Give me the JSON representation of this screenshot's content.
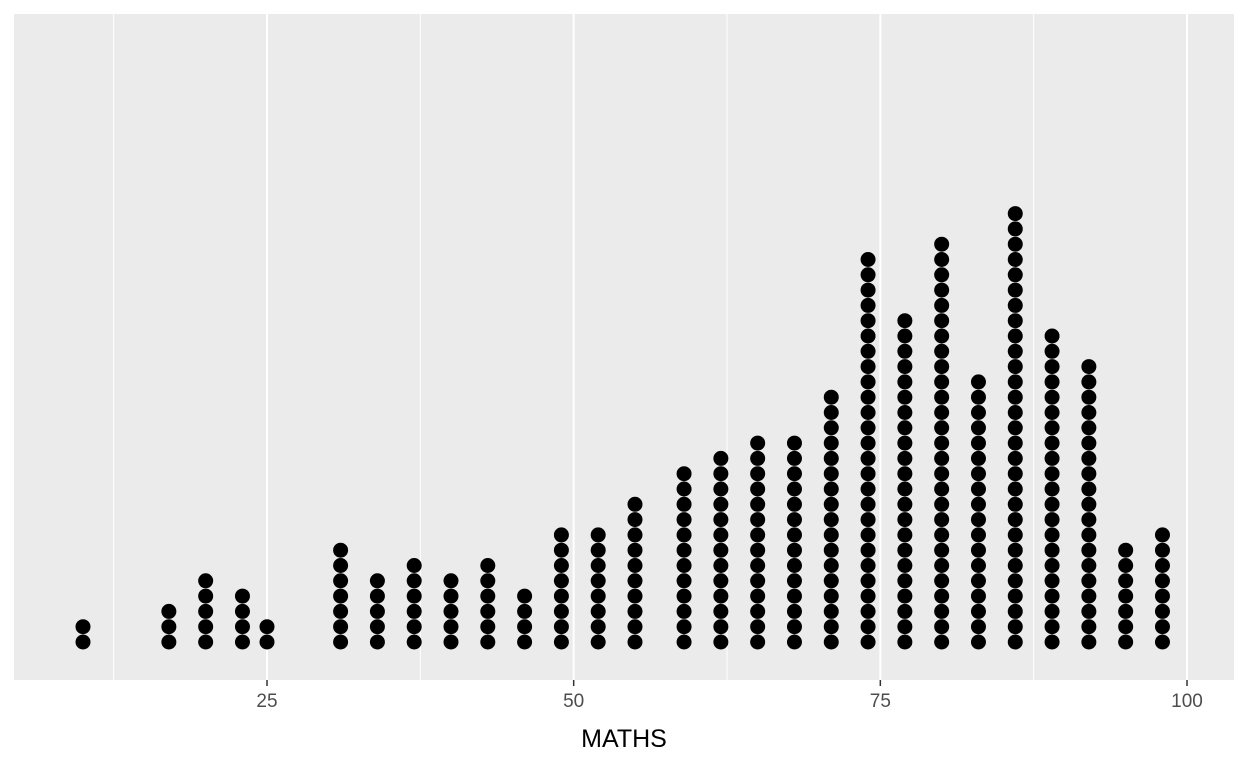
{
  "chart_data": {
    "type": "dotplot",
    "xlabel": "MATHS",
    "xlim": [
      10,
      100
    ],
    "x_ticks": [
      25,
      50,
      75,
      100
    ],
    "x_tick_labels": [
      "25",
      "50",
      "75",
      "100"
    ],
    "y_axis_visible": false,
    "grid": true,
    "panel_background": "#ebebeb",
    "grid_color": "#ffffff",
    "dot_color": "#000000",
    "bins": [
      {
        "x": 10,
        "count": 2
      },
      {
        "x": 17,
        "count": 3
      },
      {
        "x": 20,
        "count": 5
      },
      {
        "x": 23,
        "count": 4
      },
      {
        "x": 25,
        "count": 2
      },
      {
        "x": 31,
        "count": 7
      },
      {
        "x": 34,
        "count": 5
      },
      {
        "x": 37,
        "count": 6
      },
      {
        "x": 40,
        "count": 5
      },
      {
        "x": 43,
        "count": 6
      },
      {
        "x": 46,
        "count": 4
      },
      {
        "x": 49,
        "count": 8
      },
      {
        "x": 52,
        "count": 8
      },
      {
        "x": 55,
        "count": 10
      },
      {
        "x": 59,
        "count": 12
      },
      {
        "x": 62,
        "count": 13
      },
      {
        "x": 65,
        "count": 14
      },
      {
        "x": 68,
        "count": 14
      },
      {
        "x": 71,
        "count": 17
      },
      {
        "x": 74,
        "count": 26
      },
      {
        "x": 77,
        "count": 22
      },
      {
        "x": 80,
        "count": 27
      },
      {
        "x": 83,
        "count": 18
      },
      {
        "x": 86,
        "count": 29
      },
      {
        "x": 89,
        "count": 21
      },
      {
        "x": 92,
        "count": 19
      },
      {
        "x": 95,
        "count": 7
      },
      {
        "x": 98,
        "count": 8
      }
    ]
  }
}
